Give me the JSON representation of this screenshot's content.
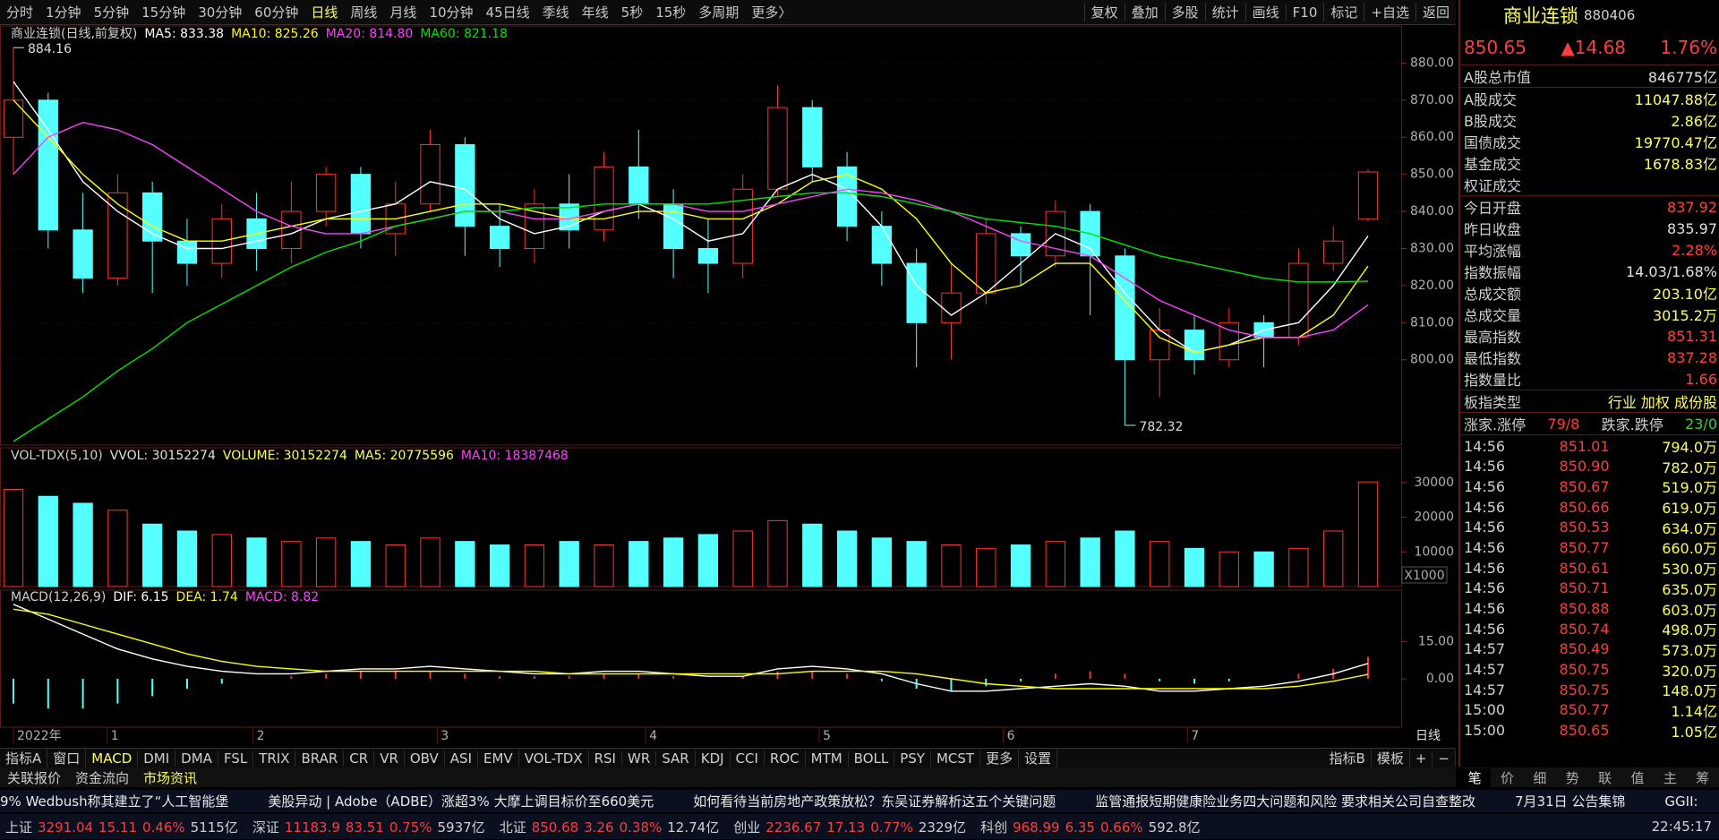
{
  "toolbar": {
    "periods": [
      {
        "label": "分时"
      },
      {
        "label": "1分钟"
      },
      {
        "label": "5分钟"
      },
      {
        "label": "15分钟"
      },
      {
        "label": "30分钟"
      },
      {
        "label": "60分钟"
      },
      {
        "label": "日线",
        "selected": true
      },
      {
        "label": "周线"
      },
      {
        "label": "月线"
      },
      {
        "label": "10分钟"
      },
      {
        "label": "45日线"
      },
      {
        "label": "季线"
      },
      {
        "label": "年线"
      },
      {
        "label": "5秒"
      },
      {
        "label": "15秒"
      },
      {
        "label": "多周期"
      },
      {
        "label": "更多〉"
      }
    ],
    "tools": [
      "复权",
      "叠加",
      "多股",
      "统计",
      "画线",
      "F10",
      "标记",
      "+自选",
      "返回"
    ]
  },
  "quote": {
    "name": "商业连锁",
    "code": "880406",
    "price": "850.65",
    "change": "▲14.68",
    "pct": "1.76%"
  },
  "stats": [
    {
      "k": "A股总市值",
      "v": "846775亿",
      "c": "#e0e0e0"
    },
    {
      "k": "A股成交",
      "v": "11047.88亿",
      "c": "#ffff54"
    },
    {
      "k": "B股成交",
      "v": "2.86亿",
      "c": "#ffff54"
    },
    {
      "k": "国债成交",
      "v": "19770.47亿",
      "c": "#ffff54"
    },
    {
      "k": "基金成交",
      "v": "1678.83亿",
      "c": "#ffff54"
    },
    {
      "k": "权证成交"
    },
    {
      "k": "今日开盘",
      "v": "837.92",
      "c": "#ff4040"
    },
    {
      "k": "昨日收盘",
      "v": "835.97",
      "c": "#e0e0e0"
    },
    {
      "k": "平均涨幅",
      "v": "2.28%",
      "c": "#ff4040"
    },
    {
      "k": "指数振幅",
      "v": "14.03/1.68%",
      "c": "#e0e0e0"
    },
    {
      "k": "总成交额",
      "v": "203.10亿",
      "c": "#ffff54"
    },
    {
      "k": "总成交量",
      "v": "3015.2万",
      "c": "#ffff54"
    },
    {
      "k": "最高指数",
      "v": "851.31",
      "c": "#ff4040"
    },
    {
      "k": "最低指数",
      "v": "837.28",
      "c": "#ff4040"
    },
    {
      "k": "指数量比",
      "v": "1.66",
      "c": "#ff4040"
    },
    {
      "k": "板指类型",
      "v": "行业 加权 成份股",
      "c": "#ffff54"
    }
  ],
  "breadth": {
    "up_label": "涨家.涨停",
    "up": "79/8",
    "down_label": "跌家.跌停",
    "down": "23/0"
  },
  "trades": [
    [
      "14:56",
      "851.01",
      "794.0万"
    ],
    [
      "14:56",
      "850.90",
      "782.0万"
    ],
    [
      "14:56",
      "850.67",
      "519.0万"
    ],
    [
      "14:56",
      "850.66",
      "619.0万"
    ],
    [
      "14:56",
      "850.53",
      "634.0万"
    ],
    [
      "14:56",
      "850.77",
      "660.0万"
    ],
    [
      "14:56",
      "850.61",
      "530.0万"
    ],
    [
      "14:56",
      "850.71",
      "635.0万"
    ],
    [
      "14:56",
      "850.88",
      "603.0万"
    ],
    [
      "14:56",
      "850.74",
      "498.0万"
    ],
    [
      "14:57",
      "850.49",
      "573.0万"
    ],
    [
      "14:57",
      "850.75",
      "320.0万"
    ],
    [
      "14:57",
      "850.75",
      "148.0万"
    ],
    [
      "15:00",
      "850.77",
      "1.14亿"
    ],
    [
      "15:00",
      "850.65",
      "1.05亿"
    ]
  ],
  "side_tabs": [
    {
      "label": "笔",
      "selected": true
    },
    {
      "label": "价"
    },
    {
      "label": "细"
    },
    {
      "label": "势"
    },
    {
      "label": "联"
    },
    {
      "label": "值"
    },
    {
      "label": "主"
    },
    {
      "label": "筹"
    }
  ],
  "chart_data": [
    {
      "type": "candlestick",
      "title": "商业连锁(日线,前复权)",
      "up_color": "#ff3232",
      "down_color": "#54ffff",
      "grid": true,
      "open": [
        860,
        870,
        835,
        822,
        845,
        832,
        826,
        838,
        830,
        840,
        850,
        834,
        842,
        858,
        836,
        830,
        842,
        835,
        852,
        842,
        830,
        826,
        846,
        868,
        852,
        836,
        826,
        810,
        818,
        834,
        828,
        840,
        828,
        800,
        808,
        800,
        810,
        806,
        826,
        837.92
      ],
      "close": [
        870,
        835,
        822,
        845,
        832,
        826,
        838,
        830,
        840,
        850,
        834,
        842,
        858,
        836,
        830,
        842,
        835,
        852,
        842,
        830,
        826,
        846,
        868,
        852,
        836,
        826,
        810,
        818,
        834,
        828,
        840,
        828,
        800,
        808,
        800,
        810,
        806,
        826,
        832,
        850.65
      ],
      "high": [
        884.16,
        872,
        845,
        850,
        848,
        838,
        842,
        845,
        848,
        852,
        852,
        848,
        862,
        860,
        842,
        846,
        850,
        856,
        862,
        846,
        838,
        850,
        874,
        870,
        856,
        840,
        830,
        826,
        838,
        836,
        843,
        842,
        830,
        814,
        812,
        814,
        812,
        830,
        836,
        851.31
      ],
      "low": [
        850,
        830,
        818,
        820,
        818,
        820,
        822,
        824,
        826,
        836,
        830,
        828,
        840,
        828,
        825,
        826,
        830,
        832,
        838,
        822,
        818,
        822,
        844,
        848,
        832,
        820,
        798,
        800,
        815,
        820,
        825,
        812,
        782.32,
        790,
        796,
        798,
        798,
        804,
        824,
        837.28
      ],
      "series": [
        {
          "name": "MA5",
          "label": "MA5: 833.38",
          "color": "#ffffff",
          "values": [
            875,
            862,
            848,
            840,
            834,
            830,
            830,
            832,
            834,
            838,
            840,
            842,
            848,
            846,
            838,
            834,
            836,
            840,
            842,
            838,
            832,
            834,
            846,
            850,
            846,
            836,
            820,
            812,
            818,
            826,
            834,
            830,
            818,
            808,
            802,
            804,
            808,
            810,
            820,
            833.38
          ]
        },
        {
          "name": "MA10",
          "label": "MA10: 825.26",
          "color": "#ffff00",
          "values": [
            870,
            860,
            850,
            842,
            836,
            832,
            832,
            834,
            836,
            838,
            838,
            838,
            840,
            842,
            842,
            840,
            838,
            838,
            840,
            840,
            838,
            838,
            842,
            848,
            850,
            846,
            838,
            826,
            818,
            820,
            826,
            826,
            816,
            806,
            802,
            804,
            806,
            806,
            812,
            825.26
          ]
        },
        {
          "name": "MA20",
          "label": "MA20: 814.80",
          "color": "#ff40ff",
          "values": [
            850,
            860,
            864,
            862,
            858,
            852,
            846,
            840,
            836,
            834,
            834,
            836,
            838,
            840,
            840,
            838,
            838,
            840,
            842,
            842,
            840,
            840,
            842,
            844,
            846,
            845,
            843,
            840,
            836,
            832,
            830,
            828,
            822,
            816,
            812,
            808,
            806,
            806,
            808,
            814.8
          ]
        },
        {
          "name": "MA60",
          "label": "MA60: 821.18",
          "color": "#00e600",
          "values": [
            778,
            784,
            790,
            797,
            803,
            810,
            815,
            820,
            825,
            829,
            832,
            836,
            838,
            840,
            840,
            841,
            841,
            842,
            842,
            842,
            842,
            843,
            844,
            845,
            845,
            844,
            842,
            840,
            838,
            837,
            836,
            834,
            831,
            828,
            826,
            824,
            822,
            821,
            821,
            821.18
          ]
        }
      ],
      "ylim": [
        777,
        890
      ],
      "yticks": [
        {
          "value": 800,
          "label": "800.00"
        },
        {
          "value": 810,
          "label": "810.00"
        },
        {
          "value": 820,
          "label": "820.00"
        },
        {
          "value": 830,
          "label": "830.00"
        },
        {
          "value": 840,
          "label": "840.00"
        },
        {
          "value": 850,
          "label": "850.00"
        },
        {
          "value": 860,
          "label": "860.00"
        },
        {
          "value": 870,
          "label": "870.00"
        },
        {
          "value": 880,
          "label": "880.00"
        }
      ]
    },
    {
      "type": "bar",
      "title": "VOL-TDX(5,10)",
      "unit": "X1000",
      "legend": [
        {
          "label": "VVOL: 30152274",
          "color": "#e0e0e0"
        },
        {
          "label": "VOLUME: 30152274",
          "color": "#ffff54"
        },
        {
          "label": "MA5: 20775596",
          "color": "#ffff54"
        },
        {
          "label": "MA10: 18387468",
          "color": "#ff40ff"
        }
      ],
      "values": [
        28000,
        26000,
        24000,
        22000,
        18000,
        16000,
        15000,
        14000,
        13000,
        14000,
        13000,
        12000,
        14000,
        13000,
        12000,
        12000,
        13000,
        12000,
        13000,
        14000,
        15000,
        16000,
        19000,
        18000,
        16000,
        14000,
        13000,
        12000,
        11000,
        12000,
        13000,
        14000,
        16000,
        13000,
        11000,
        10000,
        10000,
        11000,
        16000,
        30152.274
      ],
      "ylim": [
        0,
        40000
      ],
      "yticks": [
        10000,
        20000,
        30000
      ]
    },
    {
      "type": "macd",
      "title": "MACD(12,26,9)",
      "up_color": "#ff3232",
      "down_color": "#54ffff",
      "macd_label": "MACD: 8.82",
      "macd_color": "#ff40ff",
      "values": [
        -10,
        -12,
        -12,
        -10,
        -7,
        -4,
        -2,
        0,
        1,
        2,
        3,
        3,
        3,
        2,
        1,
        1,
        1,
        2,
        2,
        1,
        0,
        1,
        3,
        3,
        2,
        -1,
        -4,
        -5,
        -3,
        -1,
        2,
        3,
        2,
        -1,
        -2,
        -1,
        0,
        2,
        4,
        8.82
      ],
      "series": [
        {
          "name": "DIF",
          "label": "DIF: 6.15",
          "color": "#ffffff",
          "values": [
            30,
            24,
            18,
            12,
            8,
            5,
            3,
            2,
            2,
            3,
            4,
            4,
            5,
            4,
            3,
            2,
            2,
            3,
            3,
            2,
            1,
            1,
            4,
            5,
            4,
            2,
            -2,
            -5,
            -5,
            -4,
            -3,
            -2,
            -3,
            -5,
            -5,
            -4,
            -3,
            -1,
            2,
            6.15
          ]
        },
        {
          "name": "DEA",
          "label": "DEA: 1.74",
          "color": "#ffff00",
          "values": [
            28,
            26,
            22,
            18,
            14,
            10,
            7,
            5,
            4,
            3,
            3,
            3,
            3,
            3,
            3,
            3,
            2,
            2,
            2,
            2,
            2,
            2,
            2,
            3,
            3,
            3,
            2,
            0,
            -2,
            -3,
            -4,
            -4,
            -4,
            -4,
            -4,
            -4,
            -4,
            -3,
            -1,
            1.74
          ]
        }
      ],
      "ylim": [
        -19.5,
        35.7
      ],
      "yticks": [
        {
          "value": 0,
          "label": "0.00"
        },
        {
          "value": 15,
          "label": "15.00"
        }
      ]
    }
  ],
  "x_axis": {
    "ticks": [
      {
        "value": 0,
        "label": "2022年"
      },
      {
        "value": 2.7,
        "label": "1"
      },
      {
        "value": 6.9,
        "label": "2"
      },
      {
        "value": 12.2,
        "label": "3"
      },
      {
        "value": 18.2,
        "label": "4"
      },
      {
        "value": 23.2,
        "label": "5"
      },
      {
        "value": 28.5,
        "label": "6"
      },
      {
        "value": 33.8,
        "label": "7"
      }
    ],
    "period": "日线"
  },
  "indicator_tabs": [
    {
      "label": "指标A"
    },
    {
      "label": "窗口"
    },
    {
      "label": "MACD",
      "selected": true
    },
    {
      "label": "DMI"
    },
    {
      "label": "DMA"
    },
    {
      "label": "FSL"
    },
    {
      "label": "TRIX"
    },
    {
      "label": "BRAR"
    },
    {
      "label": "CR"
    },
    {
      "label": "VR"
    },
    {
      "label": "OBV"
    },
    {
      "label": "ASI"
    },
    {
      "label": "EMV"
    },
    {
      "label": "VOL-TDX"
    },
    {
      "label": "RSI"
    },
    {
      "label": "WR"
    },
    {
      "label": "SAR"
    },
    {
      "label": "KDJ"
    },
    {
      "label": "CCI"
    },
    {
      "label": "ROC"
    },
    {
      "label": "MTM"
    },
    {
      "label": "BOLL"
    },
    {
      "label": "PSY"
    },
    {
      "label": "MCST"
    },
    {
      "label": "更多"
    },
    {
      "label": "设置"
    }
  ],
  "indicator_right": [
    "指标B",
    "模板",
    "+",
    "−"
  ],
  "news_tabs": [
    {
      "label": "关联报价"
    },
    {
      "label": "资金流向"
    },
    {
      "label": "市场资讯",
      "selected": true
    }
  ],
  "ticker": [
    "9% Wedbush称其建立了“人工智能堡",
    "美股异动 | Adobe（ADBE）涨超3% 大摩上调目标价至660美元",
    "如何看待当前房地产政策放松？东吴证券解析这五个关键问题",
    "监管通报短期健康险业务四大问题和风险 要求相关公司自查整改",
    "7月31日 公告集锦",
    "GGII:"
  ],
  "status": {
    "indices": [
      {
        "name": "上证",
        "price": "3291.04",
        "chg": "15.11",
        "pct": "0.46%",
        "amt": "5115亿"
      },
      {
        "name": "深证",
        "price": "11183.9",
        "chg": "83.51",
        "pct": "0.75%",
        "amt": "5937亿"
      },
      {
        "name": "北证",
        "price": "850.68",
        "chg": "3.26",
        "pct": "0.38%",
        "amt": "12.74亿"
      },
      {
        "name": "创业",
        "price": "2236.67",
        "chg": "17.13",
        "pct": "0.77%",
        "amt": "2329亿"
      },
      {
        "name": "科创",
        "price": "968.99",
        "chg": "6.35",
        "pct": "0.66%",
        "amt": "592.8亿"
      }
    ],
    "time": "22:45:17"
  }
}
